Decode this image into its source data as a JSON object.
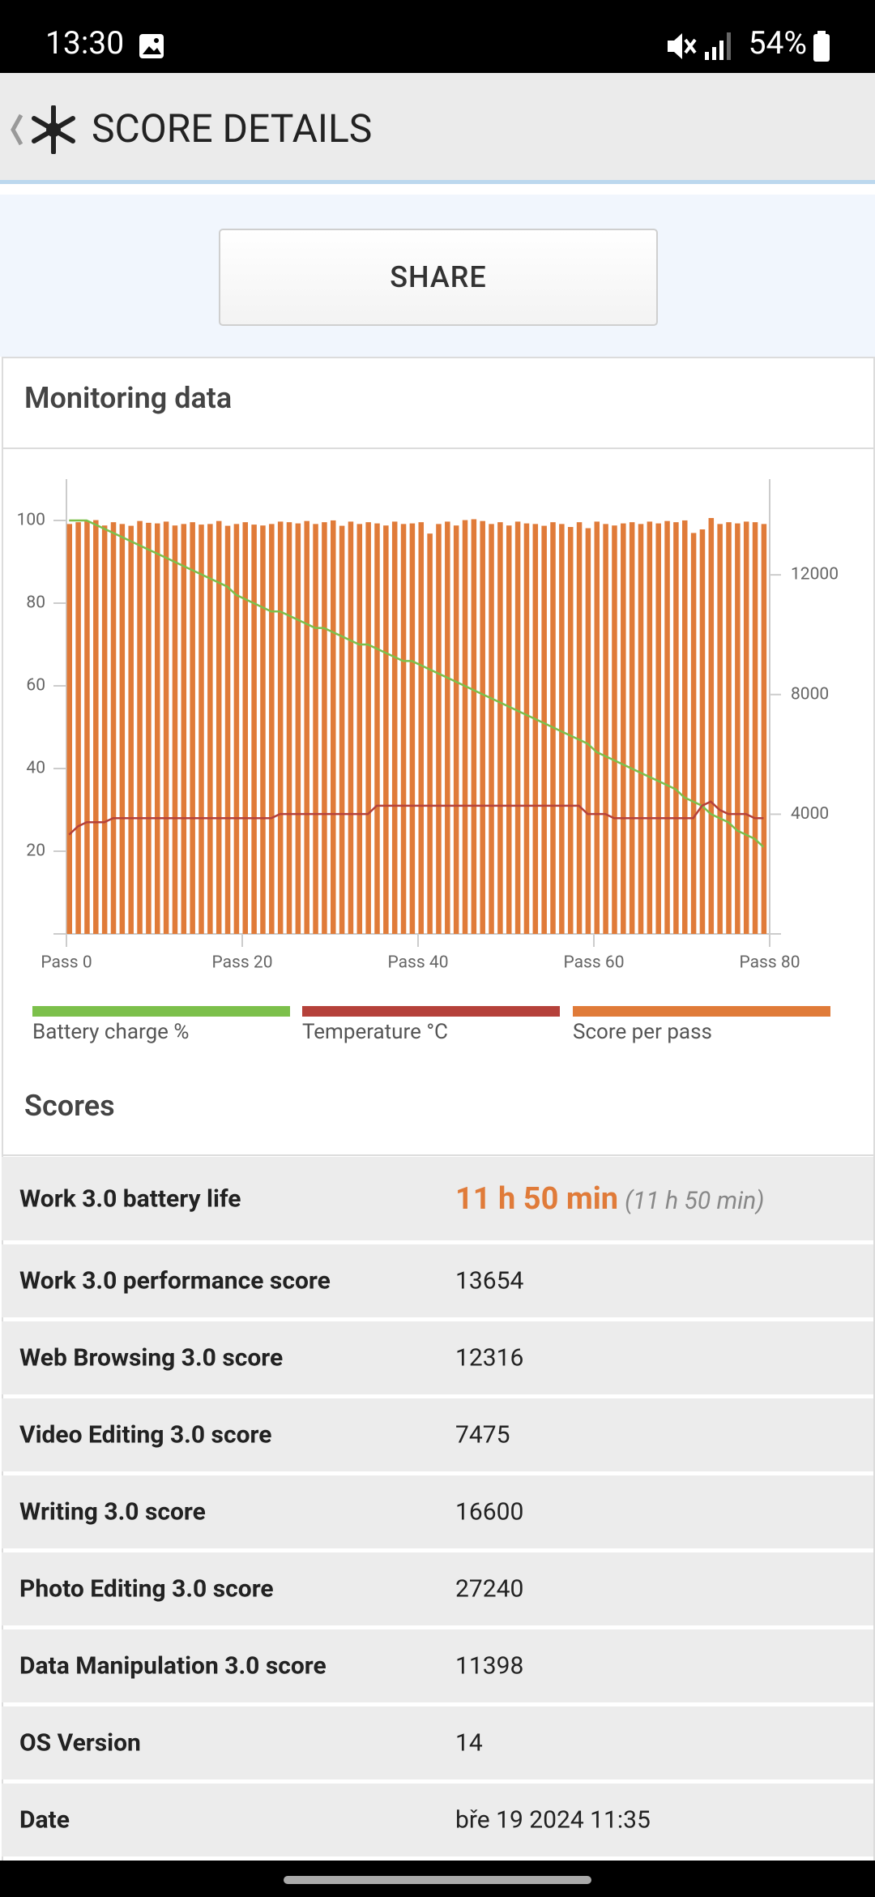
{
  "status_bar": {
    "time": "13:30",
    "battery": "54%"
  },
  "header": {
    "title": "SCORE DETAILS"
  },
  "share_button": "SHARE",
  "monitoring": {
    "title": "Monitoring data"
  },
  "chart_data": {
    "type": "combo",
    "x": [
      0,
      1,
      2,
      3,
      4,
      5,
      6,
      7,
      8,
      9,
      10,
      11,
      12,
      13,
      14,
      15,
      16,
      17,
      18,
      19,
      20,
      21,
      22,
      23,
      24,
      25,
      26,
      27,
      28,
      29,
      30,
      31,
      32,
      33,
      34,
      35,
      36,
      37,
      38,
      39,
      40,
      41,
      42,
      43,
      44,
      45,
      46,
      47,
      48,
      49,
      50,
      51,
      52,
      53,
      54,
      55,
      56,
      57,
      58,
      59,
      60,
      61,
      62,
      63,
      64,
      65,
      66,
      67,
      68,
      69,
      70,
      71,
      72,
      73,
      74,
      75,
      76,
      77,
      78,
      79
    ],
    "xlim": [
      0,
      80
    ],
    "xticks": [
      {
        "value": 0,
        "label": "Pass 0"
      },
      {
        "value": 20,
        "label": "Pass 20"
      },
      {
        "value": 40,
        "label": "Pass 40"
      },
      {
        "value": 60,
        "label": "Pass 60"
      },
      {
        "value": 80,
        "label": "Pass 80"
      }
    ],
    "ylim": [
      0,
      110
    ],
    "yticks": [
      20,
      40,
      60,
      80,
      100
    ],
    "y2lim": [
      0,
      15200
    ],
    "y2ticks": [
      4000,
      8000,
      12000
    ],
    "series": [
      {
        "name": "Battery charge %",
        "type": "line",
        "color": "#7cc04b",
        "values": [
          100,
          100,
          100,
          99,
          98,
          97,
          96,
          95,
          94,
          93,
          92,
          91,
          90,
          89,
          88,
          87,
          86,
          85,
          84,
          82,
          81,
          80,
          79,
          78,
          78,
          77,
          76,
          75,
          74,
          74,
          73,
          72,
          71,
          70,
          70,
          69,
          68,
          67,
          66,
          66,
          65,
          64,
          63,
          62,
          61,
          60,
          59,
          58,
          57,
          56,
          55,
          54,
          53,
          52,
          51,
          50,
          49,
          48,
          47,
          46,
          44,
          43,
          42,
          41,
          40,
          39,
          38,
          37,
          36,
          35,
          33,
          32,
          31,
          29,
          28,
          27,
          25,
          24,
          23,
          21
        ]
      },
      {
        "name": "Temperature °C",
        "type": "line",
        "color": "#b5413a",
        "values": [
          24,
          26,
          27,
          27,
          27,
          28,
          28,
          28,
          28,
          28,
          28,
          28,
          28,
          28,
          28,
          28,
          28,
          28,
          28,
          28,
          28,
          28,
          28,
          28,
          29,
          29,
          29,
          29,
          29,
          29,
          29,
          29,
          29,
          29,
          29,
          31,
          31,
          31,
          31,
          31,
          31,
          31,
          31,
          31,
          31,
          31,
          31,
          31,
          31,
          31,
          31,
          31,
          31,
          31,
          31,
          31,
          31,
          31,
          31,
          29,
          29,
          29,
          28,
          28,
          28,
          28,
          28,
          28,
          28,
          28,
          28,
          28,
          31,
          32,
          30,
          29,
          29,
          29,
          28,
          28
        ]
      },
      {
        "name": "Score per pass",
        "type": "bar",
        "axis": "y2",
        "color": "#e07b39",
        "values": [
          13700,
          13760,
          13800,
          13830,
          13650,
          13760,
          13700,
          13640,
          13800,
          13740,
          13720,
          13780,
          13650,
          13700,
          13760,
          13680,
          13700,
          13800,
          13640,
          13700,
          13760,
          13680,
          13650,
          13700,
          13780,
          13760,
          13720,
          13800,
          13700,
          13760,
          13820,
          13640,
          13780,
          13700,
          13760,
          13720,
          13650,
          13780,
          13700,
          13720,
          13760,
          13380,
          13700,
          13780,
          13650,
          13830,
          13860,
          13800,
          13700,
          13760,
          13650,
          13780,
          13720,
          13700,
          13640,
          13760,
          13700,
          13600,
          13760,
          13560,
          13780,
          13700,
          13650,
          13720,
          13760,
          13700,
          13780,
          13720,
          13800,
          13760,
          13820,
          13400,
          13520,
          13900,
          13700,
          13760,
          13720,
          13780,
          13760,
          13700
        ]
      }
    ]
  },
  "scores": {
    "title": "Scores",
    "rows": [
      [
        "Work 3.0 battery life",
        "11 h 50 min",
        "(11 h 50 min)"
      ],
      [
        "Work 3.0 performance score",
        "13654"
      ],
      [
        "Web Browsing 3.0 score",
        "12316"
      ],
      [
        "Video Editing 3.0 score",
        "7475"
      ],
      [
        "Writing 3.0 score",
        "16600"
      ],
      [
        "Photo Editing 3.0 score",
        "27240"
      ],
      [
        "Data Manipulation 3.0 score",
        "11398"
      ],
      [
        "OS Version",
        "14"
      ],
      [
        "Date",
        "bře 19 2024 11:35"
      ]
    ]
  }
}
